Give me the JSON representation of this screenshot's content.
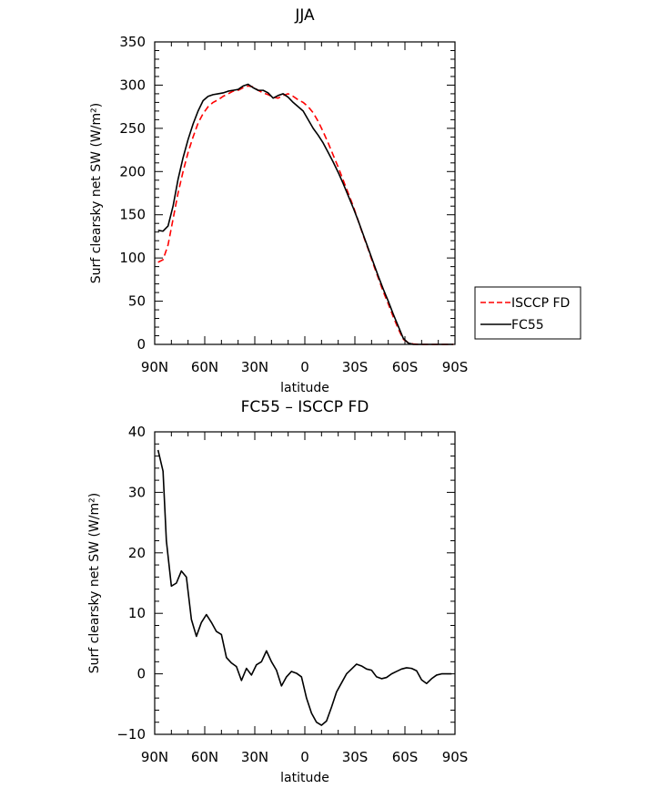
{
  "chart_data": [
    {
      "type": "line",
      "title": "JJA",
      "xlabel": "latitude",
      "ylabel": "Surf clearsky net SW (W/m²)",
      "xlim": [
        90,
        -90
      ],
      "ylim": [
        0,
        350
      ],
      "x_ticks": [
        90,
        60,
        30,
        0,
        -30,
        -60,
        -90
      ],
      "x_tick_labels": [
        "90N",
        "60N",
        "30N",
        "0",
        "30S",
        "60S",
        "90S"
      ],
      "y_ticks": [
        0,
        50,
        100,
        150,
        200,
        250,
        300,
        350
      ],
      "y_tick_labels": [
        "0",
        "50",
        "100",
        "150",
        "200",
        "250",
        "300",
        "350"
      ],
      "grid": false,
      "legend_position": "outside-right",
      "series": [
        {
          "name": "ISCCP FD",
          "color": "#ff0000",
          "dash": "dashed",
          "x": [
            88,
            85,
            82,
            79,
            76,
            73,
            70,
            67,
            64,
            61,
            58,
            55,
            52,
            49,
            46,
            43,
            40,
            37,
            34,
            31,
            28,
            25,
            22,
            19,
            16,
            13,
            10,
            7,
            4,
            1,
            -2,
            -5,
            -8,
            -11,
            -14,
            -17,
            -20,
            -23,
            -26,
            -29,
            -32,
            -35,
            -38,
            -41,
            -44,
            -47,
            -50,
            -53,
            -56,
            -59,
            -62,
            -65,
            -68,
            -71,
            -74,
            -77,
            -80,
            -83,
            -86,
            -89
          ],
          "values": [
            95,
            98,
            115,
            145,
            175,
            200,
            222,
            240,
            256,
            267,
            275,
            280,
            283,
            287,
            290,
            293,
            294,
            297,
            299,
            298,
            294,
            291,
            289,
            286,
            285,
            288,
            290,
            287,
            283,
            280,
            275,
            268,
            258,
            246,
            233,
            219,
            205,
            190,
            175,
            160,
            143,
            126,
            110,
            93,
            77,
            61,
            47,
            32,
            18,
            6,
            2,
            0.5,
            0,
            0,
            0,
            0,
            0,
            0,
            0,
            0
          ]
        },
        {
          "name": "FC55",
          "color": "#000000",
          "dash": "solid",
          "x": [
            88,
            85,
            82,
            79,
            76,
            73,
            70,
            67,
            64,
            61,
            58,
            55,
            52,
            49,
            46,
            43,
            40,
            37,
            34,
            31,
            28,
            25,
            22,
            19,
            16,
            13,
            10,
            7,
            4,
            1,
            -2,
            -5,
            -8,
            -11,
            -14,
            -17,
            -20,
            -23,
            -26,
            -29,
            -32,
            -35,
            -38,
            -41,
            -44,
            -47,
            -50,
            -53,
            -56,
            -59,
            -62,
            -65,
            -68,
            -71,
            -74,
            -77,
            -80,
            -83,
            -86,
            -89
          ],
          "values": [
            132,
            131,
            137,
            160,
            191,
            216,
            237,
            255,
            270,
            282,
            287,
            289,
            290,
            291,
            293,
            294,
            295,
            299,
            301,
            297,
            294,
            294,
            291,
            285,
            288,
            290,
            286,
            280,
            275,
            270,
            260,
            250,
            242,
            233,
            222,
            211,
            199,
            186,
            172,
            158,
            143,
            127,
            111,
            95,
            79,
            64,
            50,
            35,
            21,
            7,
            1.5,
            0,
            0,
            0,
            0,
            0,
            0,
            0,
            0,
            0
          ]
        }
      ]
    },
    {
      "type": "line",
      "title": "FC55 – ISCCP FD",
      "xlabel": "latitude",
      "ylabel": "Surf clearsky net SW (W/m²)",
      "xlim": [
        90,
        -90
      ],
      "ylim": [
        -10,
        40
      ],
      "x_ticks": [
        90,
        60,
        30,
        0,
        -30,
        -60,
        -90
      ],
      "x_tick_labels": [
        "90N",
        "60N",
        "30N",
        "0",
        "30S",
        "60S",
        "90S"
      ],
      "y_ticks": [
        -10,
        0,
        10,
        20,
        30,
        40
      ],
      "y_tick_labels": [
        "−10",
        "0",
        "10",
        "20",
        "30",
        "40"
      ],
      "grid": false,
      "series": [
        {
          "color": "#000000",
          "dash": "solid",
          "x": [
            88,
            85,
            83,
            80,
            77,
            74,
            71,
            68,
            65,
            62,
            59,
            56,
            53,
            50,
            47,
            44,
            41,
            38,
            35,
            32,
            29,
            26,
            23,
            20,
            17,
            14,
            11,
            8,
            5,
            2,
            -1,
            -4,
            -7,
            -10,
            -13,
            -16,
            -19,
            -22,
            -25,
            -28,
            -31,
            -34,
            -37,
            -40,
            -43,
            -46,
            -49,
            -52,
            -55,
            -58,
            -61,
            -64,
            -67,
            -70,
            -73,
            -76,
            -79,
            -82,
            -85,
            -88
          ],
          "values": [
            37,
            33.5,
            22,
            14.5,
            15,
            17,
            16,
            9,
            6.2,
            8.5,
            9.8,
            8.5,
            7,
            6.5,
            2.7,
            1.8,
            1.2,
            -1.1,
            0.9,
            -0.2,
            1.5,
            2,
            3.8,
            2,
            0.6,
            -2,
            -0.5,
            0.4,
            0.1,
            -0.5,
            -4,
            -6.5,
            -8,
            -8.5,
            -7.8,
            -5.5,
            -3,
            -1.5,
            0,
            0.8,
            1.6,
            1.3,
            0.8,
            0.6,
            -0.5,
            -0.8,
            -0.6,
            0,
            0.4,
            0.8,
            1,
            0.9,
            0.5,
            -1,
            -1.6,
            -0.8,
            -0.2,
            0,
            0,
            0
          ]
        }
      ]
    }
  ]
}
